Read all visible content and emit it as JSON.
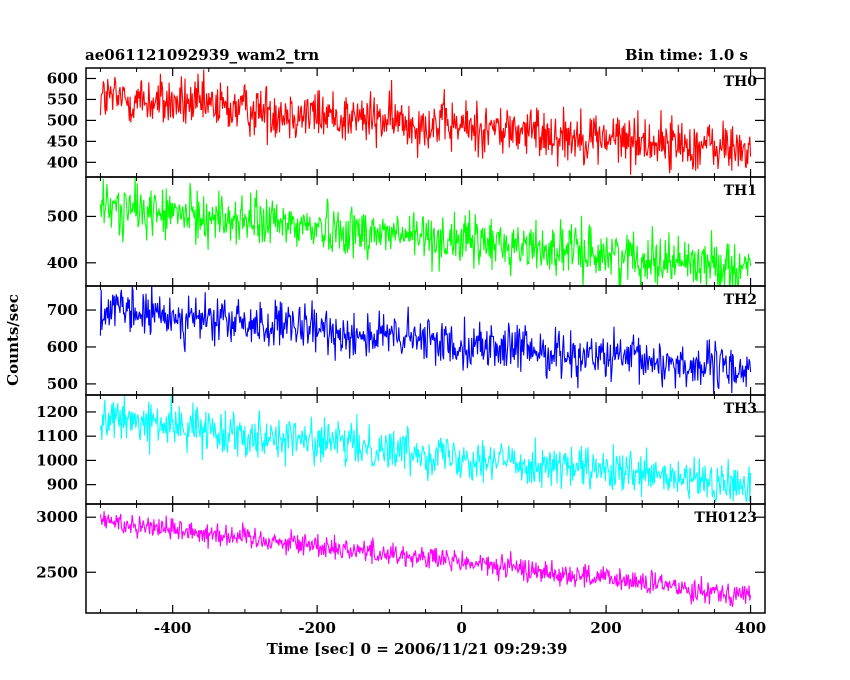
{
  "header": {
    "title": "ae061121092939_wam2_trn",
    "bin_time": "Bin time: 1.0 s"
  },
  "chart_data": {
    "type": "line",
    "xlabel": "Time [sec] 0 = 2006/11/21 09:29:39",
    "ylabel": "Counts/sec",
    "xlim": [
      -520,
      420
    ],
    "xticks": [
      -400,
      -200,
      0,
      200,
      400
    ],
    "x_start": -500,
    "x_end": 400,
    "bin_seconds": 1.0,
    "panels": [
      {
        "name": "TH0",
        "color": "#ff0000",
        "ylim": [
          365,
          625
        ],
        "yticks": [
          400,
          450,
          500,
          550,
          600
        ],
        "trend_start": 555,
        "trend_end": 430,
        "noise": 32
      },
      {
        "name": "TH1",
        "color": "#00ff00",
        "ylim": [
          350,
          585
        ],
        "yticks": [
          400,
          500
        ],
        "trend_start": 520,
        "trend_end": 390,
        "noise": 28
      },
      {
        "name": "TH2",
        "color": "#0000ff",
        "ylim": [
          470,
          765
        ],
        "yticks": [
          500,
          600,
          700
        ],
        "trend_start": 700,
        "trend_end": 535,
        "noise": 32
      },
      {
        "name": "TH3",
        "color": "#00ffff",
        "ylim": [
          820,
          1270
        ],
        "yticks": [
          900,
          1000,
          1100,
          1200
        ],
        "trend_start": 1175,
        "trend_end": 890,
        "noise": 45
      },
      {
        "name": "TH0123",
        "color": "#ff00ff",
        "ylim": [
          2130,
          3120
        ],
        "yticks": [
          2500,
          3000
        ],
        "trend_start": 2970,
        "trend_end": 2290,
        "noise": 55
      }
    ]
  }
}
